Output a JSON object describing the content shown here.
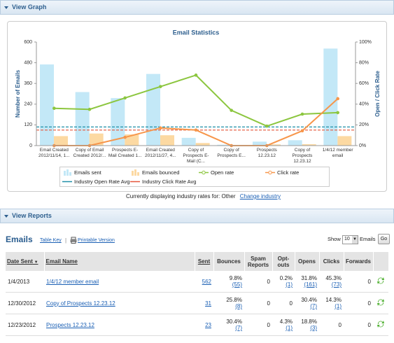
{
  "sections": {
    "graph": "View Graph",
    "reports": "View Reports"
  },
  "chart_data": {
    "type": "combo",
    "title": "Email Statistics",
    "y_label": "Number of Emails",
    "y2_label": "Open / Click Rate",
    "categories": [
      "Email Created 2012/11/14, 1...",
      "Copy of Email Created 2012/...",
      "Prospects E-Mail Created 1...",
      "Email Created 2012/11/27, 4...",
      "Copy of Prospects E-Mail (C...",
      "Copy of Prospects E...",
      "Prospects 12.23.12",
      "Copy of Prospects 12.23.12",
      "1/4/12 member email"
    ],
    "ylim": [
      0,
      600
    ],
    "yticks": [
      0,
      120,
      240,
      360,
      480,
      600
    ],
    "y2lim": [
      0,
      100
    ],
    "y2ticks": [
      {
        "value": 0,
        "label": "0%"
      },
      {
        "value": 20,
        "label": "20%"
      },
      {
        "value": 40,
        "label": "40%"
      },
      {
        "value": 60,
        "label": "60%"
      },
      {
        "value": 80,
        "label": "80%"
      },
      {
        "value": 100,
        "label": "100%"
      }
    ],
    "series": [
      {
        "name": "Emails sent",
        "type": "bar",
        "color": "#c3e8f7",
        "values": [
          470,
          310,
          275,
          415,
          45,
          5,
          23,
          31,
          562
        ]
      },
      {
        "name": "Emails bounced",
        "type": "bar",
        "color": "#fcd9a2",
        "values": [
          55,
          70,
          65,
          60,
          15,
          2,
          7,
          8,
          55
        ]
      },
      {
        "name": "Open rate",
        "type": "line",
        "axis": "y2",
        "color": "#8cc63f",
        "values": [
          36,
          35,
          46,
          57,
          68,
          34,
          18.8,
          30.4,
          31.8
        ]
      },
      {
        "name": "Click rate",
        "type": "line",
        "axis": "y2",
        "color": "#f7964b",
        "values": [
          0,
          0,
          8,
          17,
          15,
          0,
          0,
          14.3,
          45.3
        ]
      }
    ],
    "reference_lines": [
      {
        "name": "Industry Open Rate Avg",
        "color": "#1f8fa8",
        "value": 18,
        "axis": "y2"
      },
      {
        "name": "Industry Click Rate Avg",
        "color": "#e5553a",
        "value": 15,
        "axis": "y2"
      }
    ]
  },
  "industry_note": "Currently displaying industry rates for: Other",
  "change_industry": "Change industry",
  "toolbar": {
    "heading": "Emails",
    "table_key": "Table Key",
    "printable": "Printable Version",
    "show": "Show",
    "page_size": "10",
    "unit": "Emails",
    "go": "Go"
  },
  "table": {
    "columns": [
      "Date Sent",
      "Email Name",
      "Sent",
      "Bounces",
      "Spam Reports",
      "Opt-outs",
      "Opens",
      "Clicks",
      "Forwards"
    ],
    "rows": [
      [
        "1/4/2013",
        "1/4/12 member email",
        "562",
        {
          "rate": "9.8%",
          "count": "(55)"
        },
        "0",
        {
          "rate": "0.2%",
          "count": "(1)"
        },
        {
          "rate": "31.8%",
          "count": "(161)"
        },
        {
          "rate": "45.3%",
          "count": "(73)"
        },
        "0"
      ],
      [
        "12/30/2012",
        "Copy of Prospects 12.23.12",
        "31",
        {
          "rate": "25.8%",
          "count": "(8)"
        },
        "0",
        "0",
        {
          "rate": "30.4%",
          "count": "(7)"
        },
        {
          "rate": "14.3%",
          "count": "(1)"
        },
        "0"
      ],
      [
        "12/23/2012",
        "Prospects 12.23.12",
        "23",
        {
          "rate": "30.4%",
          "count": "(7)"
        },
        "0",
        {
          "rate": "4.3%",
          "count": "(1)"
        },
        {
          "rate": "18.8%",
          "count": "(3)"
        },
        "0",
        "0"
      ]
    ]
  }
}
